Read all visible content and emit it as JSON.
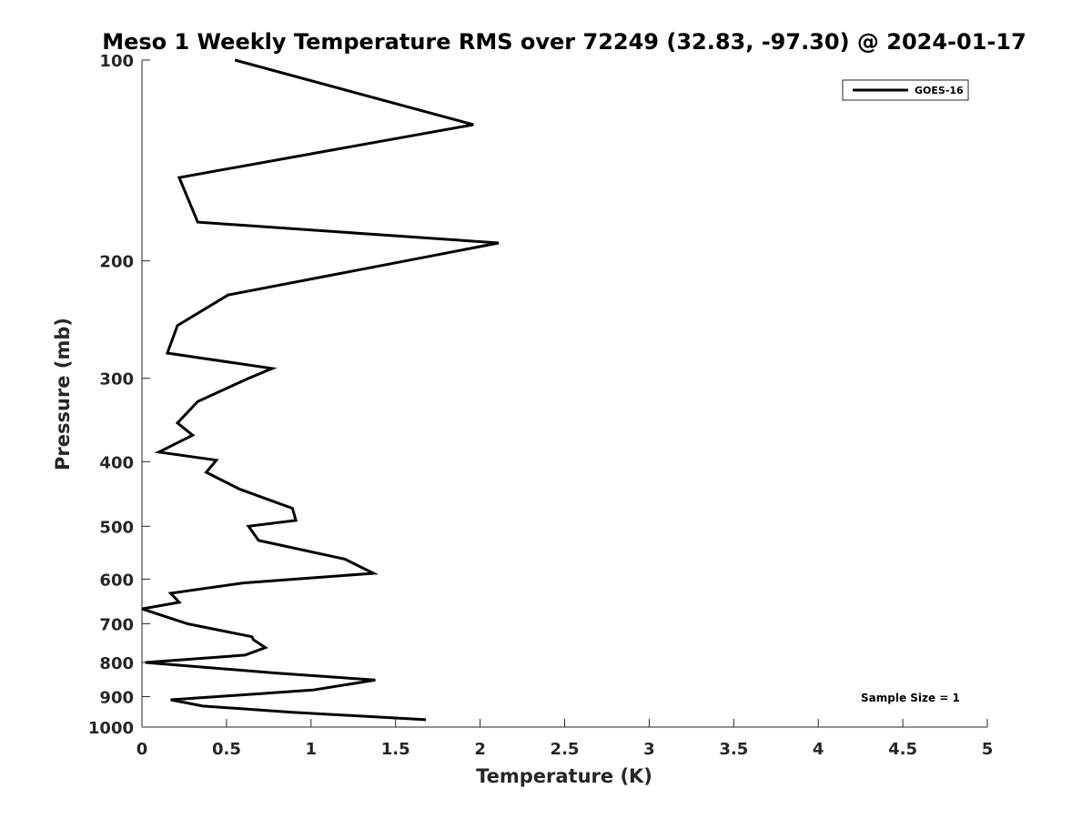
{
  "chart_data": {
    "type": "line",
    "title": "Meso 1 Weekly Temperature RMS over 72249 (32.83, -97.30) @ 2024-01-17",
    "xlabel": "Temperature (K)",
    "ylabel": "Pressure (mb)",
    "xlim": [
      0,
      5
    ],
    "ylim": [
      100,
      1000
    ],
    "y_scale": "log",
    "y_reversed": true,
    "x_ticks": [
      0,
      0.5,
      1,
      1.5,
      2,
      2.5,
      3,
      3.5,
      4,
      4.5,
      5
    ],
    "x_tick_labels": [
      "0",
      "0.5",
      "1",
      "1.5",
      "2",
      "2.5",
      "3",
      "3.5",
      "4",
      "4.5",
      "5"
    ],
    "y_ticks": [
      100,
      200,
      300,
      400,
      500,
      600,
      700,
      800,
      900,
      1000
    ],
    "y_tick_labels": [
      "100",
      "200",
      "300",
      "400",
      "500",
      "600",
      "700",
      "800",
      "900",
      "1000"
    ],
    "grid": false,
    "legend_position": "top-right",
    "series": [
      {
        "name": "GOES-16",
        "color": "#000000",
        "x": [
          0.55,
          1.96,
          0.22,
          0.33,
          2.11,
          1.56,
          0.51,
          0.21,
          0.15,
          0.77,
          0.63,
          0.33,
          0.21,
          0.3,
          0.1,
          0.44,
          0.38,
          0.58,
          0.89,
          0.91,
          0.63,
          0.69,
          1.2,
          1.37,
          0.6,
          0.17,
          0.22,
          0.0,
          0.27,
          0.65,
          0.66,
          0.73,
          0.61,
          0.02,
          0.8,
          1.38,
          1.01,
          0.17,
          0.36,
          0.89,
          1.68
        ],
        "y": [
          100,
          125,
          150,
          175,
          188,
          200,
          225,
          250,
          275,
          290,
          300,
          325,
          350,
          365,
          387,
          398,
          415,
          440,
          470,
          490,
          500,
          525,
          560,
          588,
          608,
          630,
          650,
          665,
          700,
          732,
          740,
          760,
          780,
          800,
          830,
          850,
          880,
          910,
          930,
          950,
          975
        ]
      }
    ],
    "annotations": [
      "Sample Size = 1"
    ]
  }
}
